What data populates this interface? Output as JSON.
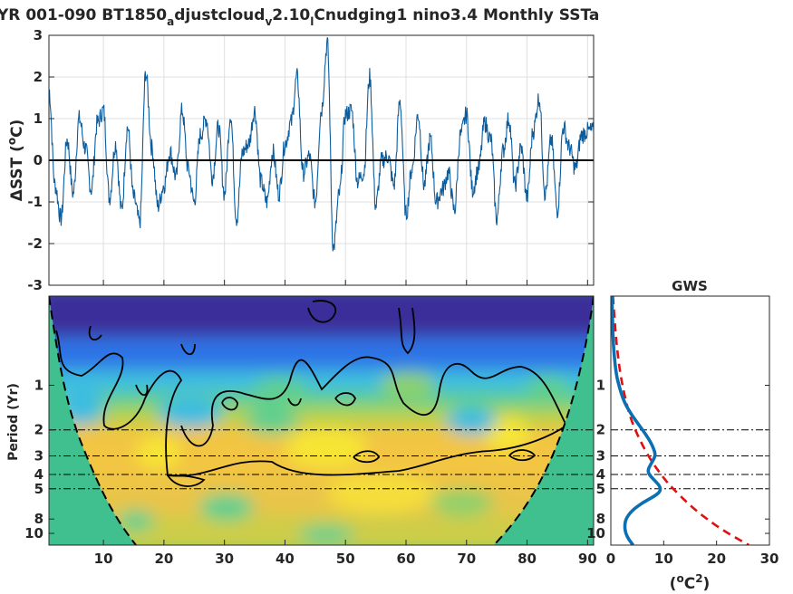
{
  "title": {
    "main": "YR 001-090 BT1850",
    "sub_a": "a",
    "mid1": "djustcloud",
    "sub_v": "v",
    "mid2": "2.10",
    "sub_l": "l",
    "tail": "Cnudging1 nino3.4 Monthly SSTa"
  },
  "colors": {
    "series": "#0b5d9e",
    "zero_line": "#000000",
    "gws_line": "#0b6fb3",
    "red_noise": "#e01010",
    "coi_fill": "#40c08f",
    "grid": "#d9d9d9"
  },
  "chart_data": [
    {
      "type": "line",
      "panel": "timeseries",
      "ylabel_prefix": "ΔSST (",
      "ylabel_sup": "o",
      "ylabel_suffix": "C)",
      "xlim": [
        1,
        91
      ],
      "ylim": [
        -3,
        3
      ],
      "yticks": [
        -3,
        -2,
        -1,
        0,
        1,
        2,
        3
      ],
      "ytick_labels": [
        "-3",
        "-2",
        "-1",
        "0",
        "1",
        "2",
        "3"
      ],
      "grid": true,
      "series": [
        {
          "x": [
            1,
            2,
            3,
            4,
            5,
            6,
            7,
            8,
            9,
            10,
            11,
            12,
            13,
            14,
            15,
            16,
            17,
            18,
            19,
            20,
            21,
            22,
            23,
            24,
            25,
            26,
            27,
            28,
            29,
            30,
            31,
            32,
            33,
            34,
            35,
            36,
            37,
            38,
            39,
            40,
            41,
            42,
            43,
            44,
            45,
            46,
            47,
            48,
            49,
            50,
            51,
            52,
            53,
            54,
            55,
            56,
            57,
            58,
            59,
            60,
            61,
            62,
            63,
            64,
            65,
            66,
            67,
            68,
            69,
            70,
            71,
            72,
            73,
            74,
            75,
            76,
            77,
            78,
            79,
            80,
            81,
            82,
            83,
            84,
            85,
            86,
            87,
            88,
            89,
            90,
            91
          ],
          "values": [
            1.7,
            -0.6,
            -1.4,
            0.5,
            -0.8,
            1.0,
            0.3,
            -0.7,
            0.9,
            1.2,
            -0.9,
            0.4,
            -1.2,
            0.8,
            -0.9,
            -1.5,
            2.1,
            0.3,
            -1.1,
            -0.6,
            0.2,
            -0.4,
            1.2,
            -0.2,
            -1.0,
            0.6,
            1.0,
            -0.4,
            0.8,
            -0.8,
            1.1,
            -1.4,
            0.2,
            0.4,
            1.2,
            -0.5,
            -1.0,
            0.2,
            -0.8,
            0.4,
            0.9,
            2.0,
            -0.3,
            0.1,
            -1.0,
            1.2,
            2.8,
            -2.1,
            -0.8,
            1.1,
            1.2,
            -0.5,
            -0.3,
            2.0,
            -1.1,
            0.0,
            0.1,
            -0.6,
            1.4,
            -1.3,
            -0.2,
            1.1,
            -0.6,
            0.5,
            -1.0,
            -0.7,
            -0.3,
            -1.2,
            0.6,
            1.1,
            -0.7,
            -0.2,
            0.9,
            0.5,
            -1.4,
            0.2,
            1.0,
            -0.6,
            0.3,
            -0.9,
            0.7,
            1.5,
            -0.8,
            0.5,
            -1.2,
            0.8,
            0.3,
            -0.2,
            0.6,
            0.7,
            0.7
          ]
        }
      ]
    },
    {
      "type": "heatmap",
      "panel": "wavelet_power",
      "ylabel": "Period (Yr)",
      "xlim": [
        1,
        91
      ],
      "xticks": [
        10,
        20,
        30,
        40,
        50,
        60,
        70,
        80,
        90
      ],
      "xtick_labels": [
        "10",
        "20",
        "30",
        "40",
        "50",
        "60",
        "70",
        "80",
        "90"
      ],
      "ylim": [
        0.25,
        12
      ],
      "yscale": "log",
      "yticks": [
        1,
        2,
        3,
        4,
        5,
        8,
        10
      ],
      "ytick_labels": [
        "1",
        "2",
        "3",
        "4",
        "5",
        "8",
        "10"
      ],
      "reference_periods": [
        2,
        3,
        4,
        5
      ],
      "colormap": [
        "#3b2f9a",
        "#2f73e6",
        "#3cbde0",
        "#5fcf8f",
        "#b8d24a",
        "#f2c542",
        "#f7e534"
      ]
    },
    {
      "type": "line",
      "panel": "global_wavelet_spectrum",
      "title": "GWS",
      "xlabel_open": "(",
      "xlabel_sup_o": "o",
      "xlabel_mid": "C",
      "xlabel_sup_2": "2",
      "xlabel_close": ")",
      "xlim": [
        0,
        30
      ],
      "xticks": [
        0,
        10,
        20,
        30
      ],
      "xtick_labels": [
        "0",
        "10",
        "20",
        "30"
      ],
      "ylim": [
        0.25,
        12
      ],
      "yscale": "log",
      "yticks": [
        1,
        2,
        3,
        4,
        5,
        8,
        10
      ],
      "ytick_labels": [
        "1",
        "2",
        "3",
        "4",
        "5",
        "8",
        "10"
      ],
      "reference_periods": [
        2,
        3,
        4,
        5
      ],
      "series": [
        {
          "style": "solid",
          "period": [
            0.25,
            0.5,
            0.8,
            1.0,
            1.3,
            1.6,
            2.0,
            2.4,
            2.8,
            3.0,
            3.3,
            3.7,
            4.0,
            4.4,
            4.8,
            5.2,
            5.6,
            6.2,
            7.0,
            8.0,
            9.0,
            10.0,
            11.0,
            12.0
          ],
          "power": [
            0.2,
            0.4,
            0.9,
            1.5,
            2.5,
            4.0,
            6.0,
            7.5,
            8.3,
            8.4,
            7.8,
            7.0,
            7.2,
            8.3,
            9.3,
            9.4,
            8.3,
            6.0,
            4.0,
            2.8,
            2.6,
            2.8,
            3.4,
            4.2
          ]
        },
        {
          "style": "dashed",
          "period": [
            0.25,
            0.5,
            0.8,
            1.0,
            1.5,
            2.0,
            2.5,
            3.0,
            3.5,
            4.0,
            4.5,
            5.0,
            6.0,
            7.0,
            8.0,
            9.0,
            10.0,
            11.0,
            12.0
          ],
          "power": [
            0.4,
            1.0,
            1.7,
            2.2,
            3.3,
            4.6,
            5.9,
            7.1,
            8.3,
            9.5,
            10.6,
            11.8,
            14.0,
            16.1,
            18.2,
            20.2,
            22.2,
            24.2,
            26.1
          ]
        }
      ]
    }
  ]
}
